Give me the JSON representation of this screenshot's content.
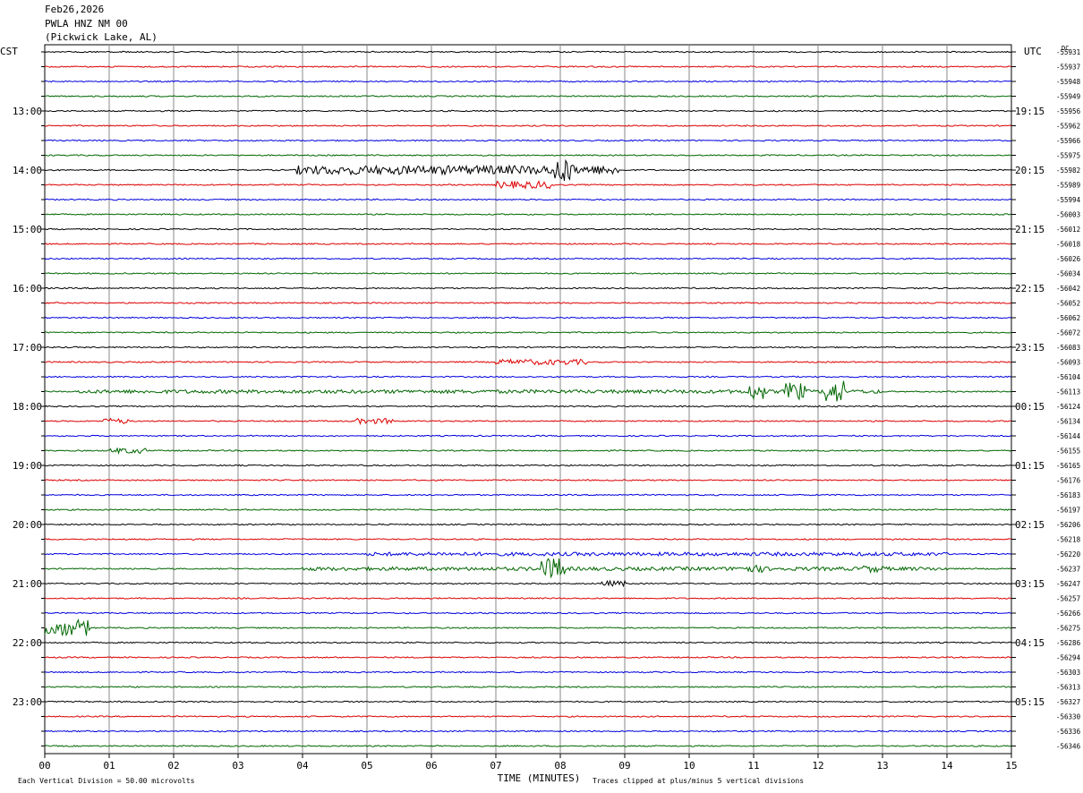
{
  "header": {
    "date": "Feb26,2026",
    "station": "PWLA HNZ NM 00",
    "location": "(Pickwick Lake, AL)"
  },
  "left_tz": "CST",
  "right_tz": "UTC",
  "dc_label": "DC",
  "footer": {
    "scale_note": "Each Vertical Division =   50.00 microvolts",
    "xlabel": "TIME (MINUTES)",
    "clip_note": "Traces clipped at plus/minus 5 vertical divisions"
  },
  "colors": {
    "trace_cycle": [
      "#000000",
      "#dd0000",
      "#0000dd",
      "#006600"
    ],
    "grid": "#888888"
  },
  "chart_data": {
    "type": "line",
    "title": "",
    "xlabel": "TIME (MINUTES)",
    "xlim": [
      0,
      15
    ],
    "xticks": [
      "00",
      "01",
      "02",
      "03",
      "04",
      "05",
      "06",
      "07",
      "08",
      "09",
      "10",
      "11",
      "12",
      "13",
      "14",
      "15"
    ],
    "left_hour_labels": [
      "13:00",
      "14:00",
      "15:00",
      "16:00",
      "17:00",
      "18:00",
      "19:00",
      "20:00",
      "21:00",
      "22:00",
      "23:00"
    ],
    "right_hour_labels": [
      "19:15",
      "20:15",
      "21:15",
      "22:15",
      "23:15",
      "00:15",
      "01:15",
      "02:15",
      "03:15",
      "04:15",
      "05:15"
    ],
    "hour_label_first_row": 4,
    "dc_offsets": [
      "-55931",
      "-55937",
      "-55948",
      "-55949",
      "-55956",
      "-55962",
      "-55966",
      "-55975",
      "-55982",
      "-55989",
      "-55994",
      "-56003",
      "-56012",
      "-56018",
      "-56026",
      "-56034",
      "-56042",
      "-56052",
      "-56062",
      "-56072",
      "-56083",
      "-56093",
      "-56104",
      "-56113",
      "-56124",
      "-56134",
      "-56144",
      "-56155",
      "-56165",
      "-56176",
      "-56183",
      "-56197",
      "-56206",
      "-56218",
      "-56220",
      "-56237",
      "-56247",
      "-56257",
      "-56266",
      "-56275",
      "-56286",
      "-56294",
      "-56303",
      "-56313",
      "-56327",
      "-56330",
      "-56336",
      "-56346"
    ],
    "row_count": 48,
    "events": [
      {
        "row": 8,
        "start": 3.9,
        "end": 8.9,
        "amp": 5
      },
      {
        "row": 8,
        "start": 7.9,
        "end": 8.2,
        "amp": 14
      },
      {
        "row": 9,
        "start": 7.0,
        "end": 7.9,
        "amp": 4
      },
      {
        "row": 21,
        "start": 7.0,
        "end": 8.4,
        "amp": 3
      },
      {
        "row": 23,
        "start": 10.9,
        "end": 11.2,
        "amp": 9
      },
      {
        "row": 23,
        "start": 11.5,
        "end": 11.8,
        "amp": 10
      },
      {
        "row": 23,
        "start": 12.1,
        "end": 12.4,
        "amp": 13
      },
      {
        "row": 23,
        "start": 0.5,
        "end": 13.0,
        "amp": 2
      },
      {
        "row": 25,
        "start": 0.9,
        "end": 1.3,
        "amp": 3
      },
      {
        "row": 25,
        "start": 4.8,
        "end": 5.4,
        "amp": 3
      },
      {
        "row": 27,
        "start": 1.0,
        "end": 1.6,
        "amp": 3
      },
      {
        "row": 34,
        "start": 5.0,
        "end": 14.0,
        "amp": 2
      },
      {
        "row": 35,
        "start": 7.7,
        "end": 8.1,
        "amp": 12
      },
      {
        "row": 35,
        "start": 10.7,
        "end": 11.2,
        "amp": 4
      },
      {
        "row": 35,
        "start": 12.7,
        "end": 13.0,
        "amp": 4
      },
      {
        "row": 35,
        "start": 4.0,
        "end": 14.0,
        "amp": 2
      },
      {
        "row": 39,
        "start": 0.0,
        "end": 0.7,
        "amp": 9
      },
      {
        "row": 36,
        "start": 8.6,
        "end": 9.0,
        "amp": 3
      }
    ]
  }
}
